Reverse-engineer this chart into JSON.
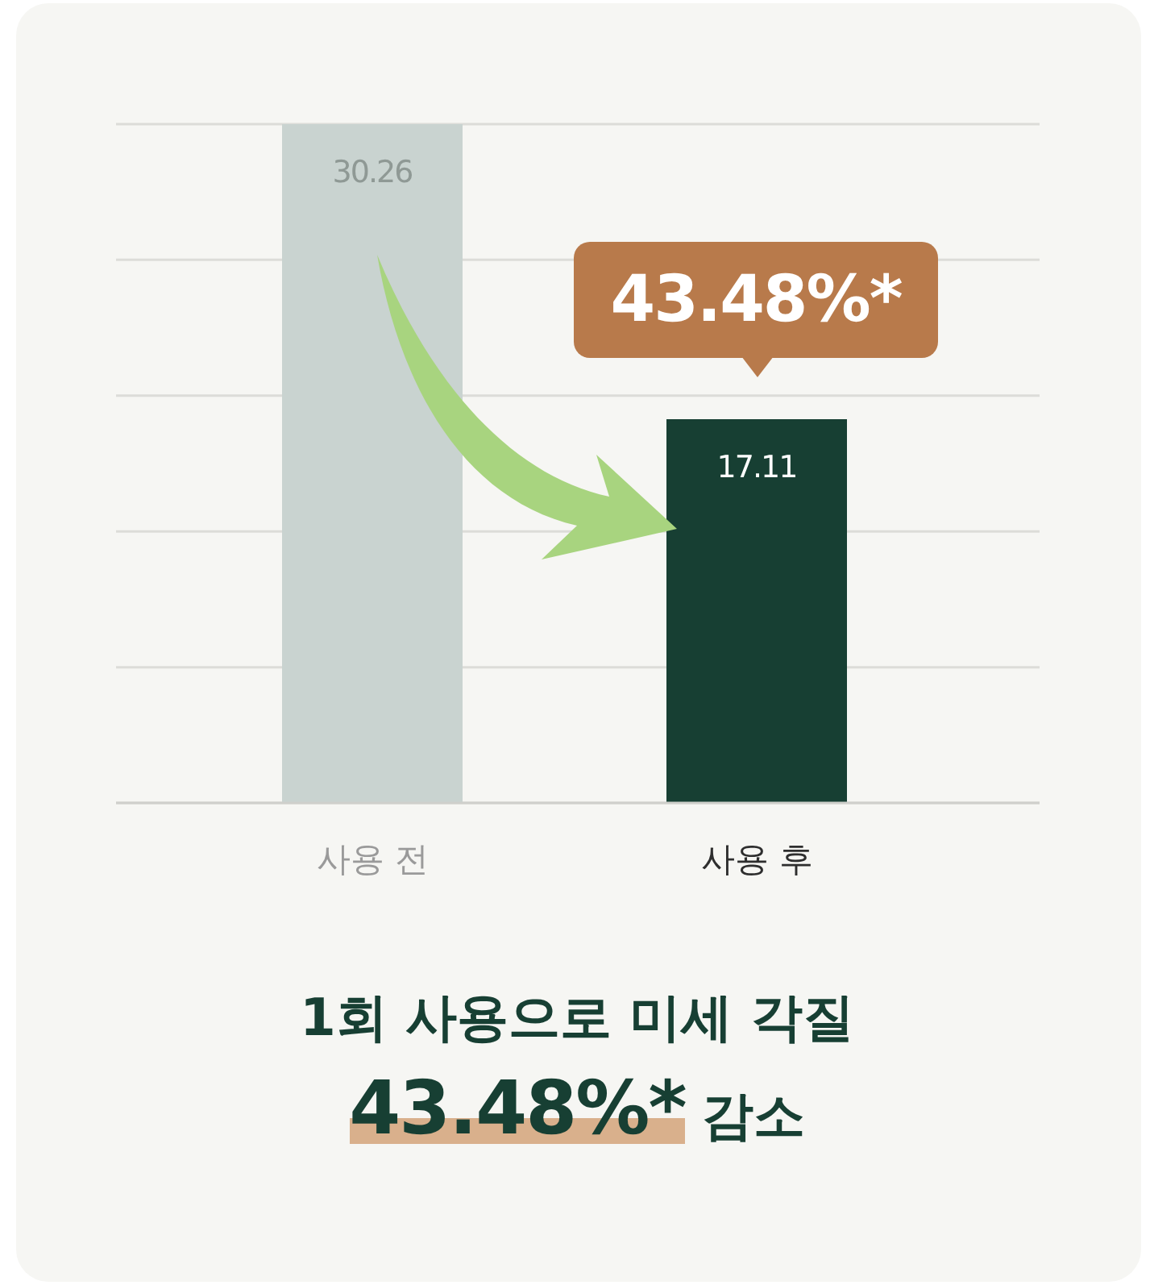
{
  "chart_data": {
    "type": "bar",
    "categories": [
      "사용 전",
      "사용 후"
    ],
    "values": [
      30.26,
      17.11
    ],
    "colors": [
      "#c9d3d0",
      "#173f33"
    ],
    "data_labels": true,
    "ylim": [
      0,
      30.26
    ],
    "yticks": [
      {
        "value": 0,
        "label": null
      },
      {
        "value": 6.05,
        "label": null
      },
      {
        "value": 12.1,
        "label": null
      },
      {
        "value": 18.16,
        "label": null
      },
      {
        "value": 24.21,
        "label": null
      },
      {
        "value": 30.26,
        "label": null
      }
    ],
    "tick_labels": "x",
    "grid": "y",
    "annotations": [
      "43.48%*",
      "1회 사용으로 미세 각질",
      "43.48%* 감소"
    ]
  }
}
